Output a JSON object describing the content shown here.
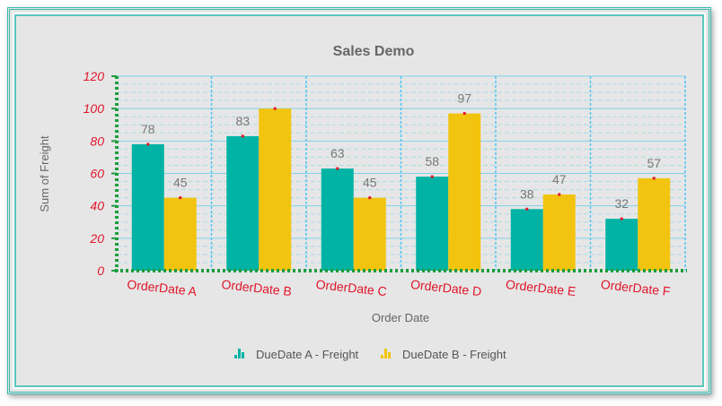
{
  "chart_data": {
    "type": "bar",
    "title": "Sales Demo",
    "xlabel": "Order Date",
    "ylabel": "Sum of Freight",
    "ylim": [
      0,
      120
    ],
    "yticks": [
      "0",
      "20",
      "40",
      "60",
      "80",
      "100",
      "120"
    ],
    "categories": [
      "OrderDate A",
      "OrderDate B",
      "OrderDate C",
      "OrderDate D",
      "OrderDate E",
      "OrderDate F"
    ],
    "series": [
      {
        "name": "DueDate A - Freight",
        "values": [
          78,
          83,
          63,
          58,
          38,
          32
        ],
        "color": "#00b3a4"
      },
      {
        "name": "DueDate B - Freight",
        "values": [
          45,
          100,
          45,
          97,
          47,
          57
        ],
        "color": "#f2c40f"
      }
    ],
    "data_labels": {
      "DueDate A - Freight": [
        "78",
        "83",
        "63",
        "58",
        "38",
        "32"
      ],
      "DueDate B - Freight": [
        "45",
        "",
        "45",
        "97",
        "47",
        "57"
      ]
    },
    "legend_position": "bottom-center",
    "grid": true,
    "colors": {
      "tick_labels": "#e0162b",
      "major_grid": "#7fd1e8",
      "minor_grid": "#a9dde6",
      "category_separator": "#4fc3f7",
      "axis_line": "#1e9e3e",
      "marker": "#e0162b"
    }
  }
}
